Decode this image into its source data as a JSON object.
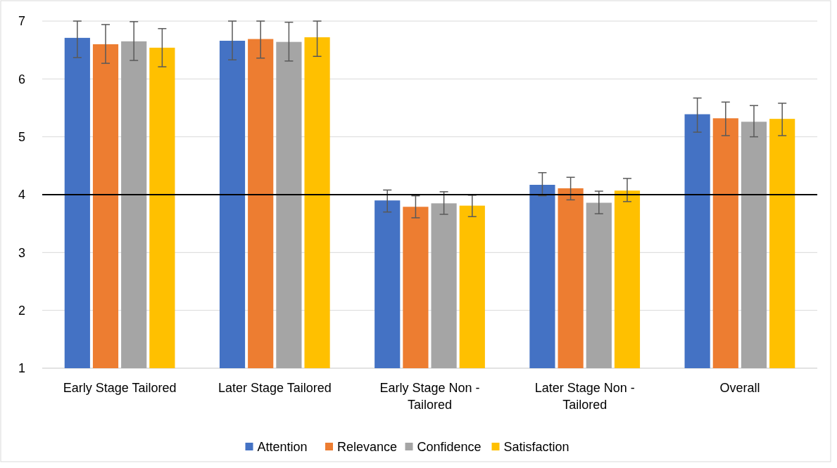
{
  "chart_data": {
    "type": "bar",
    "categories": [
      "Early Stage Tailored",
      "Later Stage Tailored",
      "Early Stage Non - Tailored",
      "Later Stage Non - Tailored",
      "Overall"
    ],
    "series": [
      {
        "name": "Attention",
        "color": "#4472c4",
        "values": [
          6.71,
          6.66,
          3.9,
          4.17,
          5.39
        ],
        "errors": [
          [
            6.37,
            7.0
          ],
          [
            6.33,
            7.0
          ],
          [
            3.7,
            4.08
          ],
          [
            3.98,
            4.38
          ],
          [
            5.08,
            5.67
          ]
        ]
      },
      {
        "name": "Relevance",
        "color": "#ed7d31",
        "values": [
          6.6,
          6.69,
          3.79,
          4.11,
          5.32
        ],
        "errors": [
          [
            6.27,
            6.94
          ],
          [
            6.36,
            7.0
          ],
          [
            3.6,
            3.98
          ],
          [
            3.91,
            4.3
          ],
          [
            5.02,
            5.6
          ]
        ]
      },
      {
        "name": "Confidence",
        "color": "#a5a5a5",
        "values": [
          6.65,
          6.64,
          3.85,
          3.86,
          5.26
        ],
        "errors": [
          [
            6.32,
            6.99
          ],
          [
            6.31,
            6.98
          ],
          [
            3.66,
            4.05
          ],
          [
            3.67,
            4.06
          ],
          [
            5.0,
            5.54
          ]
        ]
      },
      {
        "name": "Satisfaction",
        "color": "#ffc000",
        "values": [
          6.54,
          6.72,
          3.81,
          4.07,
          5.31
        ],
        "errors": [
          [
            6.21,
            6.87
          ],
          [
            6.39,
            7.0
          ],
          [
            3.62,
            3.99
          ],
          [
            3.88,
            4.28
          ],
          [
            5.02,
            5.58
          ]
        ]
      }
    ],
    "ylim": [
      1,
      7
    ],
    "yticks": [
      1,
      2,
      3,
      4,
      5,
      6,
      7
    ],
    "grid": "y",
    "legend": "bottom",
    "ref_lines": [
      {
        "axis": "y",
        "value": 4,
        "color": "#000000"
      }
    ]
  }
}
